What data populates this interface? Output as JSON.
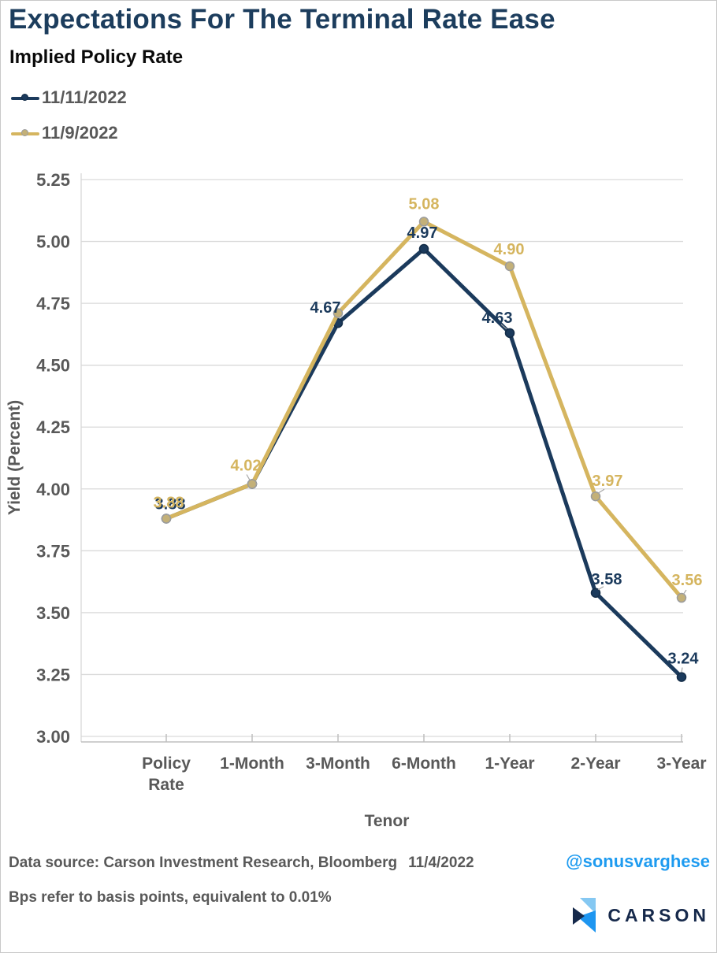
{
  "header": {
    "title": "Expectations For The Terminal Rate Ease",
    "subtitle": "Implied Policy Rate"
  },
  "chart_data": {
    "type": "line",
    "categories": [
      "Policy Rate",
      "1-Month",
      "3-Month",
      "6-Month",
      "1-Year",
      "2-Year",
      "3-Year"
    ],
    "xlabel": "Tenor",
    "ylabel": "Yield (Percent)",
    "ylim": [
      3.0,
      5.25
    ],
    "ytick_step": 0.25,
    "grid": "horizontal",
    "legend_position": "top-left",
    "series": [
      {
        "name": "11/11/2022",
        "color": "#1B3A5C",
        "dot_fill": "#1B3A5C",
        "dot_stroke": "#132C47",
        "values": [
          3.88,
          4.02,
          4.67,
          4.97,
          4.63,
          3.58,
          3.24
        ],
        "point_labels": [
          "3.88",
          null,
          "4.67",
          "4.97",
          "4.63",
          "3.58",
          "3.24"
        ]
      },
      {
        "name": "11/9/2022",
        "color": "#D5B55F",
        "dot_fill": "#C3B078",
        "dot_stroke": "#9C9C9C",
        "values": [
          3.88,
          4.02,
          4.71,
          5.08,
          4.9,
          3.97,
          3.56
        ],
        "point_labels": [
          "3.88",
          "4.02",
          null,
          "5.08",
          "4.90",
          "3.97",
          "3.56"
        ]
      }
    ]
  },
  "footer": {
    "data_source": "Data source: Carson Investment Research, Bloomberg",
    "date": "11/4/2022",
    "handle": "@sonusvarghese",
    "note": "Bps refer to basis points, equivalent to 0.01%",
    "logo_text": "CARSON"
  },
  "colors": {
    "title": "#1C3D5D",
    "axis_text": "#595959",
    "gridline": "#D9D9D9",
    "axis_line": "#BFBFBF",
    "leader": "#A6A6A6",
    "handle_blue": "#1E9BF0",
    "logo_navy": "#16294B",
    "logo_light_blue": "#85C8F2",
    "logo_bright_blue": "#1E96F0"
  }
}
